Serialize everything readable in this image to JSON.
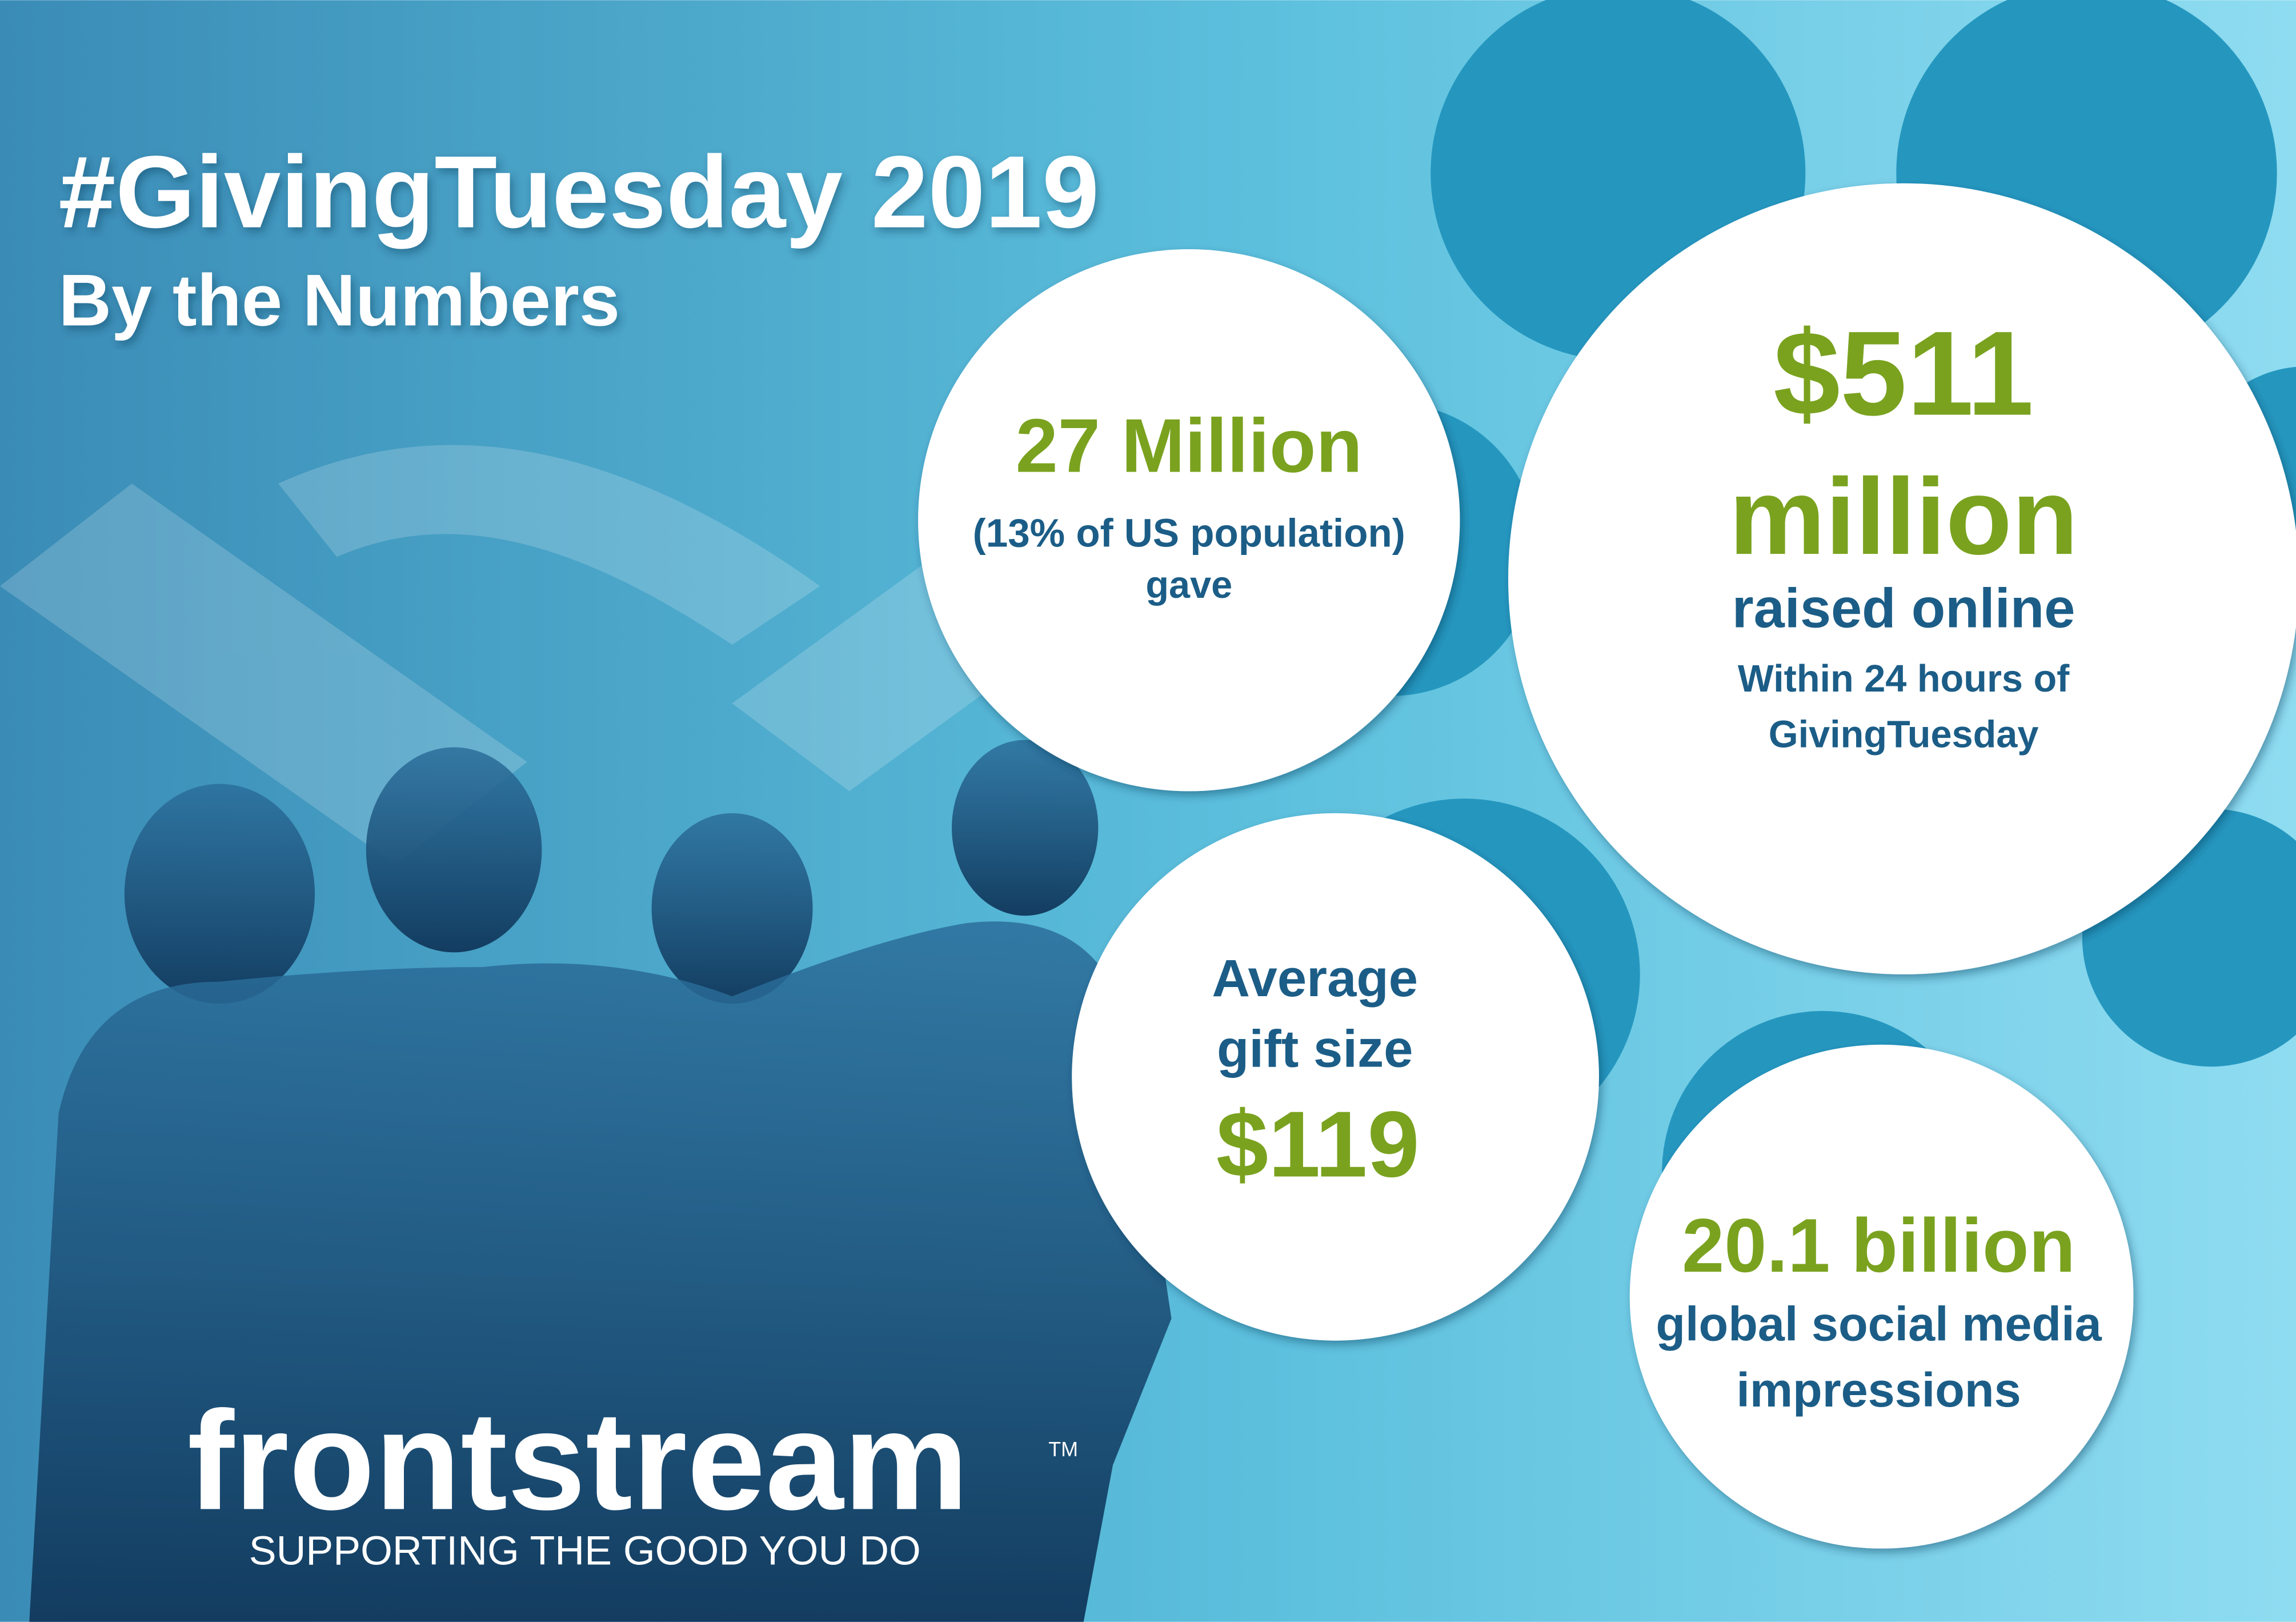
{
  "header": {
    "title": "#GivingTuesday 2019",
    "subtitle": "By the Numbers"
  },
  "stats": [
    {
      "value": "27 Million",
      "note": [
        "(13% of US population)",
        "gave"
      ]
    },
    {
      "value": [
        "$511",
        "million"
      ],
      "label": "raised online",
      "note": [
        "Within 24 hours of",
        "GivingTuesday"
      ]
    },
    {
      "label": [
        "Average",
        "gift size"
      ],
      "value": "$119"
    },
    {
      "value": "20.1 billion",
      "label": [
        "global social media",
        "impressions"
      ]
    }
  ],
  "logo": {
    "brand": "frontstream",
    "trademark": "TM",
    "tagline": "SUPPORTING THE GOOD YOU DO"
  }
}
